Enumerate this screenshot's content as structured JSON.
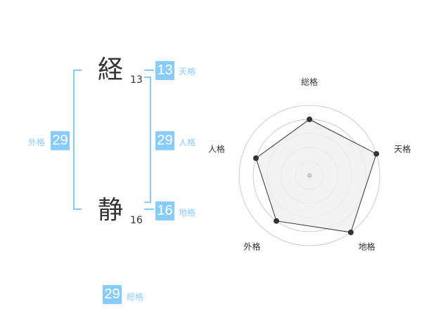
{
  "name": {
    "chars": [
      {
        "char": "経",
        "strokes": "13"
      },
      {
        "char": "静",
        "strokes": "16"
      }
    ]
  },
  "kakusu": {
    "tenkaku": {
      "label": "天格",
      "value": "13"
    },
    "jinkaku": {
      "label": "人格",
      "value": "29"
    },
    "chikaku": {
      "label": "地格",
      "value": "16"
    },
    "gaikaku": {
      "label": "外格",
      "value": "29"
    },
    "soukaku": {
      "label": "総格",
      "value": "29"
    }
  },
  "colors": {
    "accent": "#88ccfb",
    "radar_fill": "#f0f0f0",
    "radar_line": "#333333"
  },
  "chart_data": {
    "type": "radar",
    "axes": [
      "総格",
      "天格",
      "地格",
      "外格",
      "人格"
    ],
    "values": [
      4,
      5,
      5,
      4,
      4
    ],
    "range": [
      0,
      5
    ],
    "grid": "circles"
  }
}
